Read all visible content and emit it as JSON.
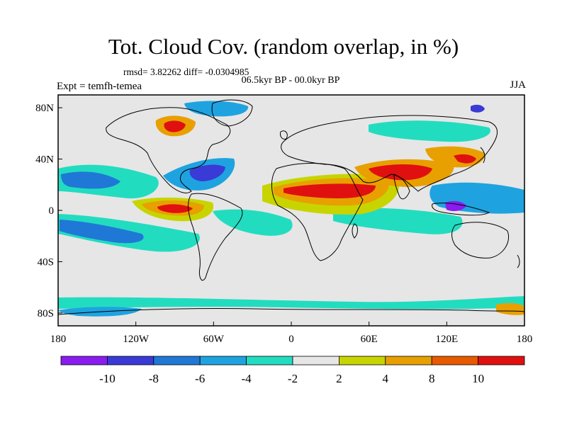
{
  "title": "Tot. Cloud Cov. (random overlap, in %)",
  "stats": "rmsd= 3.82262  diff= -0.0304985",
  "period": "06.5kyr BP - 00.0kyr BP",
  "experiment": "Expt = temfh-temea",
  "season": "JJA",
  "map": {
    "projection": "cylindrical-equidistant",
    "lon_range": [
      -180,
      180
    ],
    "lat_range": [
      -90,
      90
    ],
    "x_ticks": [
      "180",
      "120W",
      "60W",
      "0",
      "60E",
      "120E",
      "180"
    ],
    "y_ticks": [
      "80N",
      "40N",
      "0",
      "40S",
      "80S"
    ],
    "background_color": "#e6e6e6",
    "land_outline_color": "#000000"
  },
  "colorbar": {
    "labels": [
      "-10",
      "-8",
      "-6",
      "-4",
      "-2",
      "2",
      "4",
      "8",
      "10"
    ],
    "colors": [
      "#8a1cf0",
      "#3a3ad6",
      "#1f78d6",
      "#1ea3e0",
      "#22dcc0",
      "#e6e6e6",
      "#c8d400",
      "#e8a000",
      "#e85a00",
      "#e01010"
    ]
  }
}
